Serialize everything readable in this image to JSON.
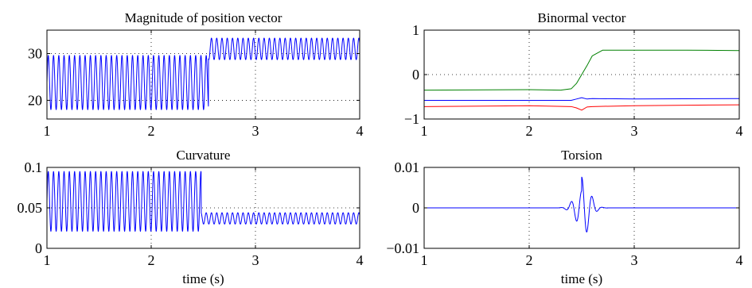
{
  "chart_data": [
    {
      "type": "line",
      "title": "Magnitude of position vector",
      "xlabel": "",
      "ylabel": "",
      "xlim": [
        1,
        4
      ],
      "ylim": [
        16,
        35
      ],
      "xticks": [
        1,
        2,
        3,
        4
      ],
      "yticks": [
        20,
        30
      ],
      "xtick_labels": [
        "1",
        "2",
        "3",
        "4"
      ],
      "ytick_labels": [
        "20",
        "30"
      ],
      "grid": true,
      "series": [
        {
          "color": "#0000ff",
          "segments": [
            {
              "x0": 1.0,
              "x1": 2.55,
              "center": 23.8,
              "amplitude": 5.8,
              "period": 0.0505
            },
            {
              "x0": 2.55,
              "x1": 4.0,
              "center": 31.0,
              "amplitude": 2.3,
              "period": 0.0505
            }
          ],
          "peak_near": {
            "x": 2.66,
            "y": 34.5
          }
        }
      ]
    },
    {
      "type": "line",
      "title": "Binormal vector",
      "xlabel": "",
      "ylabel": "",
      "xlim": [
        1,
        4
      ],
      "ylim": [
        -1,
        1
      ],
      "xticks": [
        1,
        2,
        3,
        4
      ],
      "yticks": [
        -1,
        0,
        1
      ],
      "xtick_labels": [
        "1",
        "2",
        "3",
        "4"
      ],
      "ytick_labels": [
        "−1",
        "0",
        "1"
      ],
      "grid": true,
      "series": [
        {
          "color": "#008000",
          "x": [
            1.0,
            2.0,
            2.3,
            2.4,
            2.45,
            2.5,
            2.55,
            2.6,
            2.7,
            3.0,
            3.5,
            4.0
          ],
          "y": [
            -0.35,
            -0.34,
            -0.35,
            -0.32,
            -0.2,
            0.0,
            0.2,
            0.42,
            0.55,
            0.55,
            0.55,
            0.54
          ]
        },
        {
          "color": "#0000ff",
          "x": [
            1.0,
            2.0,
            2.4,
            2.45,
            2.5,
            2.55,
            2.6,
            3.0,
            4.0
          ],
          "y": [
            -0.58,
            -0.58,
            -0.58,
            -0.55,
            -0.52,
            -0.55,
            -0.54,
            -0.55,
            -0.54
          ]
        },
        {
          "color": "#ff0000",
          "x": [
            1.0,
            2.0,
            2.4,
            2.45,
            2.5,
            2.55,
            2.6,
            3.0,
            4.0
          ],
          "y": [
            -0.72,
            -0.7,
            -0.72,
            -0.75,
            -0.8,
            -0.73,
            -0.72,
            -0.7,
            -0.68
          ]
        }
      ]
    },
    {
      "type": "line",
      "title": "Curvature",
      "xlabel": "time (s)",
      "ylabel": "",
      "xlim": [
        1,
        4
      ],
      "ylim": [
        0,
        0.1
      ],
      "xticks": [
        1,
        2,
        3,
        4
      ],
      "yticks": [
        0,
        0.05,
        0.1
      ],
      "xtick_labels": [
        "1",
        "2",
        "3",
        "4"
      ],
      "ytick_labels": [
        "0",
        "0.05",
        "0.1"
      ],
      "grid": true,
      "series": [
        {
          "color": "#0000ff",
          "segments": [
            {
              "x0": 1.0,
              "x1": 2.48,
              "center": 0.058,
              "amplitude": 0.037,
              "period": 0.0505
            },
            {
              "x0": 2.48,
              "x1": 4.0,
              "center": 0.037,
              "amplitude": 0.007,
              "period": 0.0505
            }
          ]
        }
      ]
    },
    {
      "type": "line",
      "title": "Torsion",
      "xlabel": "time (s)",
      "ylabel": "",
      "xlim": [
        1,
        4
      ],
      "ylim": [
        -0.01,
        0.01
      ],
      "xticks": [
        1,
        2,
        3,
        4
      ],
      "yticks": [
        -0.01,
        0,
        0.01
      ],
      "xtick_labels": [
        "1",
        "2",
        "3",
        "4"
      ],
      "ytick_labels": [
        "−0.01",
        "0",
        "0.01"
      ],
      "grid": true,
      "series": [
        {
          "color": "#0000ff",
          "burst": {
            "center_x": 2.5,
            "width": 0.07,
            "amplitude": 0.0076,
            "period": 0.1,
            "baseline": 0.0
          }
        }
      ]
    }
  ]
}
